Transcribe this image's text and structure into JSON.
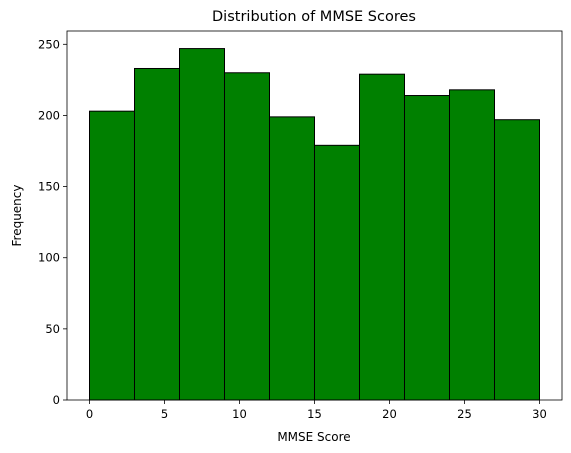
{
  "chart_data": {
    "type": "bar",
    "title": "Distribution of MMSE Scores",
    "xlabel": "MMSE Score",
    "ylabel": "Frequency",
    "bin_edges": [
      0,
      3,
      6,
      9,
      12,
      15,
      18,
      21,
      24,
      27,
      30
    ],
    "values": [
      203,
      233,
      247,
      230,
      199,
      179,
      229,
      214,
      218,
      197
    ],
    "xlim": [
      -1.5,
      31.5
    ],
    "ylim": [
      0,
      259.35
    ],
    "xticks": [
      0,
      5,
      10,
      15,
      20,
      25,
      30
    ],
    "yticks": [
      0,
      50,
      100,
      150,
      200,
      250
    ],
    "grid": false,
    "bar_color": "#008000",
    "edge_color": "#000000"
  }
}
